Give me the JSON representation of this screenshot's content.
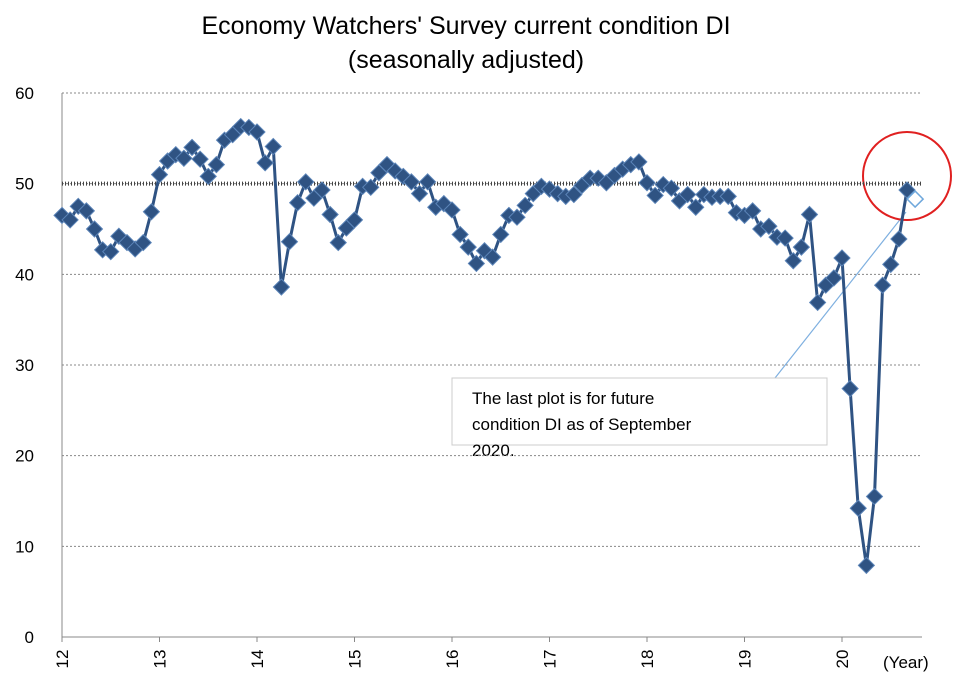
{
  "chart_data": {
    "type": "line",
    "title": "Economy Watchers' Survey current condition DI",
    "subtitle": "(seasonally adjusted)",
    "x_label": "(Year)",
    "annotation": [
      "The last plot is for future",
      "condition DI as of September",
      "2020."
    ],
    "categories": [
      "12",
      null,
      null,
      null,
      null,
      null,
      null,
      null,
      null,
      null,
      null,
      null,
      "13",
      null,
      null,
      null,
      null,
      null,
      null,
      null,
      null,
      null,
      null,
      null,
      "14",
      null,
      null,
      null,
      null,
      null,
      null,
      null,
      null,
      null,
      null,
      null,
      "15",
      null,
      null,
      null,
      null,
      null,
      null,
      null,
      null,
      null,
      null,
      null,
      "16",
      null,
      null,
      null,
      null,
      null,
      null,
      null,
      null,
      null,
      null,
      null,
      "17",
      null,
      null,
      null,
      null,
      null,
      null,
      null,
      null,
      null,
      null,
      null,
      "18",
      null,
      null,
      null,
      null,
      null,
      null,
      null,
      null,
      null,
      null,
      null,
      "19",
      null,
      null,
      null,
      null,
      null,
      null,
      null,
      null,
      null,
      null,
      null,
      "20",
      null,
      null,
      null,
      null,
      null,
      null,
      null,
      null,
      null
    ],
    "series": [
      {
        "color": "#2f5383",
        "values": [
          46.5,
          46.0,
          47.5,
          47.0,
          45.0,
          42.7,
          42.5,
          44.2,
          43.5,
          42.8,
          43.5,
          46.9,
          51.0,
          52.5,
          53.2,
          52.8,
          54.0,
          52.7,
          50.8,
          52.1,
          54.8,
          55.4,
          56.3,
          56.2,
          55.7,
          52.3,
          54.1,
          38.6,
          43.6,
          47.9,
          50.2,
          48.4,
          49.3,
          46.6,
          43.5,
          45.1,
          46.0,
          49.7,
          49.6,
          51.2,
          52.1,
          51.4,
          50.8,
          50.2,
          48.9,
          50.2,
          47.4,
          47.8,
          47.1,
          44.4,
          43.0,
          41.2,
          42.6,
          41.9,
          44.4,
          46.5,
          46.3,
          47.6,
          48.9,
          49.7,
          49.4,
          48.9,
          48.6,
          48.8,
          49.8,
          50.6,
          50.6,
          50.1,
          50.9,
          51.6,
          52.1,
          52.4,
          50.1,
          48.7,
          49.9,
          49.5,
          48.1,
          48.8,
          47.4,
          48.8,
          48.5,
          48.6,
          48.6,
          46.8,
          46.5,
          47.0,
          45.0,
          45.3,
          44.1,
          44.0,
          41.5,
          43.0,
          46.6,
          36.9,
          38.8,
          39.6,
          41.8,
          27.4,
          14.2,
          7.9,
          15.5,
          38.8,
          41.1,
          43.9,
          49.3,
          null
        ]
      },
      {
        "color": "#6fa8dc",
        "values": [
          null,
          null,
          null,
          null,
          null,
          null,
          null,
          null,
          null,
          null,
          null,
          null,
          null,
          null,
          null,
          null,
          null,
          null,
          null,
          null,
          null,
          null,
          null,
          null,
          null,
          null,
          null,
          null,
          null,
          null,
          null,
          null,
          null,
          null,
          null,
          null,
          null,
          null,
          null,
          null,
          null,
          null,
          null,
          null,
          null,
          null,
          null,
          null,
          null,
          null,
          null,
          null,
          null,
          null,
          null,
          null,
          null,
          null,
          null,
          null,
          null,
          null,
          null,
          null,
          null,
          null,
          null,
          null,
          null,
          null,
          null,
          null,
          null,
          null,
          null,
          null,
          null,
          null,
          null,
          null,
          null,
          null,
          null,
          null,
          null,
          null,
          null,
          null,
          null,
          null,
          null,
          null,
          null,
          null,
          null,
          null,
          null,
          null,
          null,
          null,
          null,
          null,
          null,
          null,
          null,
          48.3
        ]
      }
    ],
    "reference_line": 50,
    "ylim": [
      0,
      60
    ],
    "yticks": [
      0,
      10,
      20,
      30,
      40,
      50,
      60
    ],
    "grid": true
  }
}
